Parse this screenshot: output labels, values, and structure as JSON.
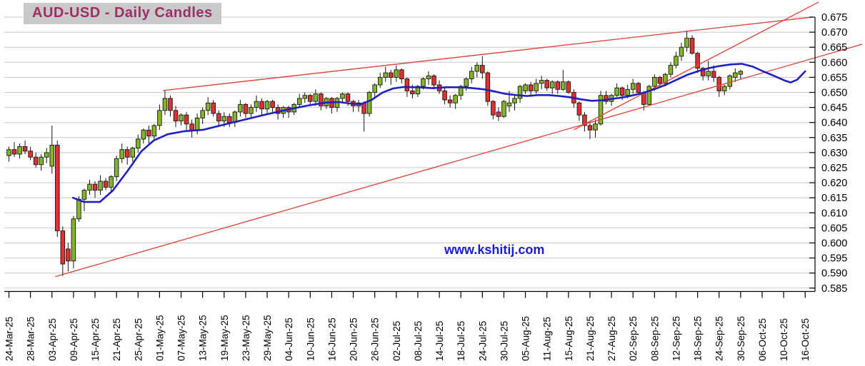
{
  "title": "AUD-USD - Daily Candles",
  "watermark": "www.kshitij.com",
  "colors": {
    "up_candle": "#83b527",
    "down_candle": "#e03030",
    "candle_outline": "#151515",
    "ma_line": "#2020c0",
    "trend_line": "#dd4b3e",
    "grid": "#c8c8c8",
    "axis": "#000000",
    "title_fg": "#9c2f63",
    "title_bg": "#c9c9c9",
    "watermark_fg": "#1b1bd1"
  },
  "chart_data": {
    "type": "candlestick",
    "title": "AUD-USD - Daily Candles",
    "ylabel": "",
    "xlabel": "",
    "ylim": [
      0.585,
      0.675
    ],
    "y_tick_step": 0.005,
    "y_tick_labels": [
      "0.675",
      "0.670",
      "0.665",
      "0.660",
      "0.655",
      "0.650",
      "0.645",
      "0.640",
      "0.635",
      "0.630",
      "0.625",
      "0.620",
      "0.615",
      "0.610",
      "0.605",
      "0.600",
      "0.595",
      "0.590",
      "0.585"
    ],
    "x_tick_labels": [
      "24-Mar-25",
      "28-Mar-25",
      "03-Apr-25",
      "09-Apr-25",
      "15-Apr-25",
      "21-Apr-25",
      "25-Apr-25",
      "01-May-25",
      "07-May-25",
      "13-May-25",
      "19-May-25",
      "23-May-25",
      "29-May-25",
      "04-Jun-25",
      "10-Jun-25",
      "16-Jun-25",
      "20-Jun-25",
      "26-Jun-25",
      "02-Jul-25",
      "08-Jul-25",
      "14-Jul-25",
      "18-Jul-25",
      "24-Jul-25",
      "30-Jul-25",
      "05-Aug-25",
      "11-Aug-25",
      "15-Aug-25",
      "21-Aug-25",
      "27-Aug-25",
      "02-Sep-25",
      "08-Sep-25",
      "12-Sep-25",
      "18-Sep-25",
      "24-Sep-25",
      "30-Sep-25",
      "06-Oct-25",
      "10-Oct-25",
      "16-Oct-25"
    ],
    "x_ticks_every_n_candles": 4,
    "grid": "horizontal-only",
    "candles_ohlc": [
      [
        0.629,
        0.632,
        0.627,
        0.631
      ],
      [
        0.631,
        0.6335,
        0.6285,
        0.6295
      ],
      [
        0.6295,
        0.633,
        0.628,
        0.632
      ],
      [
        0.632,
        0.634,
        0.6295,
        0.6305
      ],
      [
        0.6305,
        0.632,
        0.6275,
        0.6285
      ],
      [
        0.6285,
        0.63,
        0.625,
        0.626
      ],
      [
        0.626,
        0.6295,
        0.624,
        0.6285
      ],
      [
        0.6285,
        0.6315,
        0.6265,
        0.63
      ],
      [
        0.6255,
        0.639,
        0.623,
        0.6325
      ],
      [
        0.6325,
        0.634,
        0.602,
        0.604
      ],
      [
        0.604,
        0.6055,
        0.589,
        0.593
      ],
      [
        0.598,
        0.6,
        0.5905,
        0.594
      ],
      [
        0.594,
        0.609,
        0.5915,
        0.608
      ],
      [
        0.608,
        0.6155,
        0.607,
        0.6145
      ],
      [
        0.6145,
        0.618,
        0.6105,
        0.6175
      ],
      [
        0.6175,
        0.621,
        0.616,
        0.6195
      ],
      [
        0.6195,
        0.6205,
        0.615,
        0.6175
      ],
      [
        0.6175,
        0.6225,
        0.616,
        0.6205
      ],
      [
        0.6205,
        0.6215,
        0.6175,
        0.6185
      ],
      [
        0.6185,
        0.6225,
        0.617,
        0.622
      ],
      [
        0.622,
        0.629,
        0.6205,
        0.628
      ],
      [
        0.628,
        0.633,
        0.6265,
        0.631
      ],
      [
        0.631,
        0.632,
        0.626,
        0.6285
      ],
      [
        0.6285,
        0.632,
        0.627,
        0.6315
      ],
      [
        0.6315,
        0.636,
        0.63,
        0.6345
      ],
      [
        0.6345,
        0.638,
        0.633,
        0.6375
      ],
      [
        0.6375,
        0.639,
        0.633,
        0.6355
      ],
      [
        0.6355,
        0.6395,
        0.634,
        0.639
      ],
      [
        0.639,
        0.646,
        0.6375,
        0.644
      ],
      [
        0.644,
        0.6505,
        0.6425,
        0.648
      ],
      [
        0.648,
        0.649,
        0.642,
        0.644
      ],
      [
        0.644,
        0.6455,
        0.6385,
        0.6405
      ],
      [
        0.6405,
        0.643,
        0.639,
        0.6425
      ],
      [
        0.6425,
        0.6435,
        0.637,
        0.6395
      ],
      [
        0.6395,
        0.641,
        0.635,
        0.6375
      ],
      [
        0.6375,
        0.643,
        0.636,
        0.6415
      ],
      [
        0.6415,
        0.645,
        0.6395,
        0.644
      ],
      [
        0.644,
        0.6485,
        0.6425,
        0.6465
      ],
      [
        0.6465,
        0.6475,
        0.642,
        0.643
      ],
      [
        0.643,
        0.644,
        0.6385,
        0.6405
      ],
      [
        0.6405,
        0.6435,
        0.6385,
        0.642
      ],
      [
        0.642,
        0.643,
        0.6385,
        0.64
      ],
      [
        0.64,
        0.644,
        0.6385,
        0.6435
      ],
      [
        0.6435,
        0.6475,
        0.642,
        0.646
      ],
      [
        0.646,
        0.6465,
        0.6415,
        0.643
      ],
      [
        0.643,
        0.646,
        0.6415,
        0.645
      ],
      [
        0.645,
        0.649,
        0.6435,
        0.647
      ],
      [
        0.647,
        0.648,
        0.6425,
        0.6445
      ],
      [
        0.6445,
        0.6475,
        0.643,
        0.647
      ],
      [
        0.647,
        0.6475,
        0.6435,
        0.645
      ],
      [
        0.645,
        0.646,
        0.641,
        0.643
      ],
      [
        0.643,
        0.6455,
        0.6415,
        0.645
      ],
      [
        0.645,
        0.6455,
        0.6415,
        0.6435
      ],
      [
        0.6435,
        0.6465,
        0.6425,
        0.646
      ],
      [
        0.646,
        0.6495,
        0.645,
        0.648
      ],
      [
        0.648,
        0.65,
        0.6465,
        0.649
      ],
      [
        0.649,
        0.6495,
        0.6455,
        0.647
      ],
      [
        0.647,
        0.651,
        0.6455,
        0.6495
      ],
      [
        0.6495,
        0.65,
        0.644,
        0.6455
      ],
      [
        0.6455,
        0.6485,
        0.6445,
        0.648
      ],
      [
        0.648,
        0.6485,
        0.643,
        0.645
      ],
      [
        0.645,
        0.6485,
        0.6435,
        0.648
      ],
      [
        0.648,
        0.65,
        0.6465,
        0.6495
      ],
      [
        0.6495,
        0.65,
        0.6455,
        0.647
      ],
      [
        0.647,
        0.6475,
        0.6435,
        0.6455
      ],
      [
        0.6455,
        0.6475,
        0.6435,
        0.6465
      ],
      [
        0.6465,
        0.647,
        0.637,
        0.643
      ],
      [
        0.643,
        0.6505,
        0.642,
        0.65
      ],
      [
        0.65,
        0.653,
        0.6485,
        0.6525
      ],
      [
        0.6525,
        0.6565,
        0.6515,
        0.655
      ],
      [
        0.655,
        0.6585,
        0.6535,
        0.6565
      ],
      [
        0.6565,
        0.6575,
        0.6525,
        0.655
      ],
      [
        0.655,
        0.659,
        0.6535,
        0.6575
      ],
      [
        0.6575,
        0.658,
        0.653,
        0.6545
      ],
      [
        0.6545,
        0.655,
        0.6485,
        0.6505
      ],
      [
        0.6505,
        0.6525,
        0.648,
        0.6495
      ],
      [
        0.6495,
        0.6525,
        0.6485,
        0.652
      ],
      [
        0.652,
        0.655,
        0.651,
        0.6545
      ],
      [
        0.6545,
        0.657,
        0.6525,
        0.6555
      ],
      [
        0.6555,
        0.656,
        0.651,
        0.6525
      ],
      [
        0.6525,
        0.654,
        0.6495,
        0.6505
      ],
      [
        0.6505,
        0.6515,
        0.646,
        0.6475
      ],
      [
        0.6475,
        0.649,
        0.645,
        0.6465
      ],
      [
        0.6465,
        0.6495,
        0.6445,
        0.649
      ],
      [
        0.649,
        0.6525,
        0.6475,
        0.652
      ],
      [
        0.652,
        0.655,
        0.6505,
        0.6545
      ],
      [
        0.6545,
        0.6585,
        0.653,
        0.657
      ],
      [
        0.657,
        0.66,
        0.655,
        0.659
      ],
      [
        0.659,
        0.662,
        0.6545,
        0.6565
      ],
      [
        0.6565,
        0.657,
        0.6455,
        0.647
      ],
      [
        0.647,
        0.6475,
        0.641,
        0.6425
      ],
      [
        0.6435,
        0.645,
        0.6405,
        0.642
      ],
      [
        0.642,
        0.6475,
        0.6415,
        0.647
      ],
      [
        0.6455,
        0.6505,
        0.6435,
        0.6465
      ],
      [
        0.6465,
        0.649,
        0.644,
        0.648
      ],
      [
        0.648,
        0.6525,
        0.6465,
        0.652
      ],
      [
        0.6505,
        0.653,
        0.6495,
        0.6525
      ],
      [
        0.6525,
        0.6535,
        0.6485,
        0.6505
      ],
      [
        0.6505,
        0.6545,
        0.6495,
        0.653
      ],
      [
        0.653,
        0.6555,
        0.651,
        0.654
      ],
      [
        0.654,
        0.6545,
        0.6505,
        0.6515
      ],
      [
        0.6515,
        0.654,
        0.6495,
        0.6535
      ],
      [
        0.6535,
        0.654,
        0.6495,
        0.651
      ],
      [
        0.651,
        0.6575,
        0.6505,
        0.6535
      ],
      [
        0.6535,
        0.654,
        0.6495,
        0.65
      ],
      [
        0.65,
        0.651,
        0.645,
        0.6465
      ],
      [
        0.6465,
        0.647,
        0.6405,
        0.6425
      ],
      [
        0.6425,
        0.6435,
        0.637,
        0.639
      ],
      [
        0.639,
        0.6405,
        0.6345,
        0.6375
      ],
      [
        0.6375,
        0.641,
        0.635,
        0.6395
      ],
      [
        0.6395,
        0.6505,
        0.639,
        0.649
      ],
      [
        0.649,
        0.6505,
        0.646,
        0.647
      ],
      [
        0.647,
        0.6495,
        0.6455,
        0.649
      ],
      [
        0.649,
        0.653,
        0.6485,
        0.6515
      ],
      [
        0.6515,
        0.652,
        0.6475,
        0.649
      ],
      [
        0.649,
        0.6525,
        0.648,
        0.651
      ],
      [
        0.651,
        0.6545,
        0.6495,
        0.653
      ],
      [
        0.653,
        0.6535,
        0.6495,
        0.65
      ],
      [
        0.65,
        0.6505,
        0.644,
        0.646
      ],
      [
        0.646,
        0.6525,
        0.6455,
        0.652
      ],
      [
        0.652,
        0.656,
        0.6505,
        0.655
      ],
      [
        0.655,
        0.6555,
        0.6515,
        0.653
      ],
      [
        0.653,
        0.6565,
        0.652,
        0.656
      ],
      [
        0.656,
        0.66,
        0.655,
        0.659
      ],
      [
        0.659,
        0.6635,
        0.658,
        0.662
      ],
      [
        0.662,
        0.6665,
        0.6605,
        0.665
      ],
      [
        0.665,
        0.6705,
        0.6635,
        0.668
      ],
      [
        0.668,
        0.669,
        0.6625,
        0.663
      ],
      [
        0.663,
        0.6635,
        0.6565,
        0.658
      ],
      [
        0.658,
        0.6585,
        0.654,
        0.6555
      ],
      [
        0.6555,
        0.6605,
        0.654,
        0.657
      ],
      [
        0.657,
        0.659,
        0.6535,
        0.655
      ],
      [
        0.655,
        0.6555,
        0.6485,
        0.6505
      ],
      [
        0.6505,
        0.6525,
        0.649,
        0.652
      ],
      [
        0.652,
        0.656,
        0.651,
        0.6555
      ],
      [
        0.655,
        0.658,
        0.6535,
        0.6565
      ],
      [
        0.656,
        0.6575,
        0.6545,
        0.657
      ]
    ],
    "ma_points": [
      [
        11.9,
        0.615
      ],
      [
        14,
        0.6136
      ],
      [
        16.9,
        0.6136
      ],
      [
        19.3,
        0.6174
      ],
      [
        22,
        0.6238
      ],
      [
        24.6,
        0.6304
      ],
      [
        26.9,
        0.634
      ],
      [
        29.5,
        0.6361
      ],
      [
        32.6,
        0.6371
      ],
      [
        36.2,
        0.6376
      ],
      [
        40.2,
        0.6394
      ],
      [
        44.1,
        0.6411
      ],
      [
        48.1,
        0.6428
      ],
      [
        52.1,
        0.6444
      ],
      [
        55.4,
        0.6456
      ],
      [
        58.8,
        0.6466
      ],
      [
        61.4,
        0.6468
      ],
      [
        63.4,
        0.6463
      ],
      [
        65.4,
        0.6461
      ],
      [
        67.4,
        0.6475
      ],
      [
        69.4,
        0.6499
      ],
      [
        71.4,
        0.6513
      ],
      [
        73.4,
        0.6518
      ],
      [
        76,
        0.6517
      ],
      [
        78.7,
        0.6514
      ],
      [
        81.3,
        0.6517
      ],
      [
        84,
        0.6517
      ],
      [
        86.2,
        0.6514
      ],
      [
        88.4,
        0.651
      ],
      [
        90.3,
        0.6503
      ],
      [
        92.3,
        0.6495
      ],
      [
        94.3,
        0.6491
      ],
      [
        96.3,
        0.6488
      ],
      [
        98.3,
        0.6491
      ],
      [
        100.3,
        0.6491
      ],
      [
        102.3,
        0.6488
      ],
      [
        104.3,
        0.6484
      ],
      [
        106.3,
        0.6477
      ],
      [
        108.3,
        0.6472
      ],
      [
        110.3,
        0.6474
      ],
      [
        112.3,
        0.6479
      ],
      [
        114.3,
        0.6484
      ],
      [
        116.2,
        0.6491
      ],
      [
        118.2,
        0.65
      ],
      [
        120.2,
        0.6512
      ],
      [
        122.2,
        0.6526
      ],
      [
        124.2,
        0.6543
      ],
      [
        126.2,
        0.6559
      ],
      [
        128.2,
        0.6571
      ],
      [
        130.2,
        0.6581
      ],
      [
        132.2,
        0.6588
      ],
      [
        134.2,
        0.6593
      ],
      [
        136.2,
        0.6595
      ],
      [
        138.2,
        0.6586
      ],
      [
        140.2,
        0.657
      ],
      [
        142.2,
        0.6555
      ],
      [
        144.1,
        0.654
      ],
      [
        145.3,
        0.6533
      ],
      [
        146.5,
        0.6542
      ],
      [
        148,
        0.657
      ]
    ],
    "trendlines": [
      {
        "name": "resistance-line",
        "i1": 28.6,
        "p1": 0.6506,
        "i2": 149.3,
        "p2": 0.675
      },
      {
        "name": "support-line-long",
        "i1": 8.6,
        "p1": 0.5888,
        "i2": 158.6,
        "p2": 0.666
      },
      {
        "name": "support-line-steep",
        "i1": 105.0,
        "p1": 0.6376,
        "i2": 150.5,
        "p2": 0.68
      }
    ]
  }
}
